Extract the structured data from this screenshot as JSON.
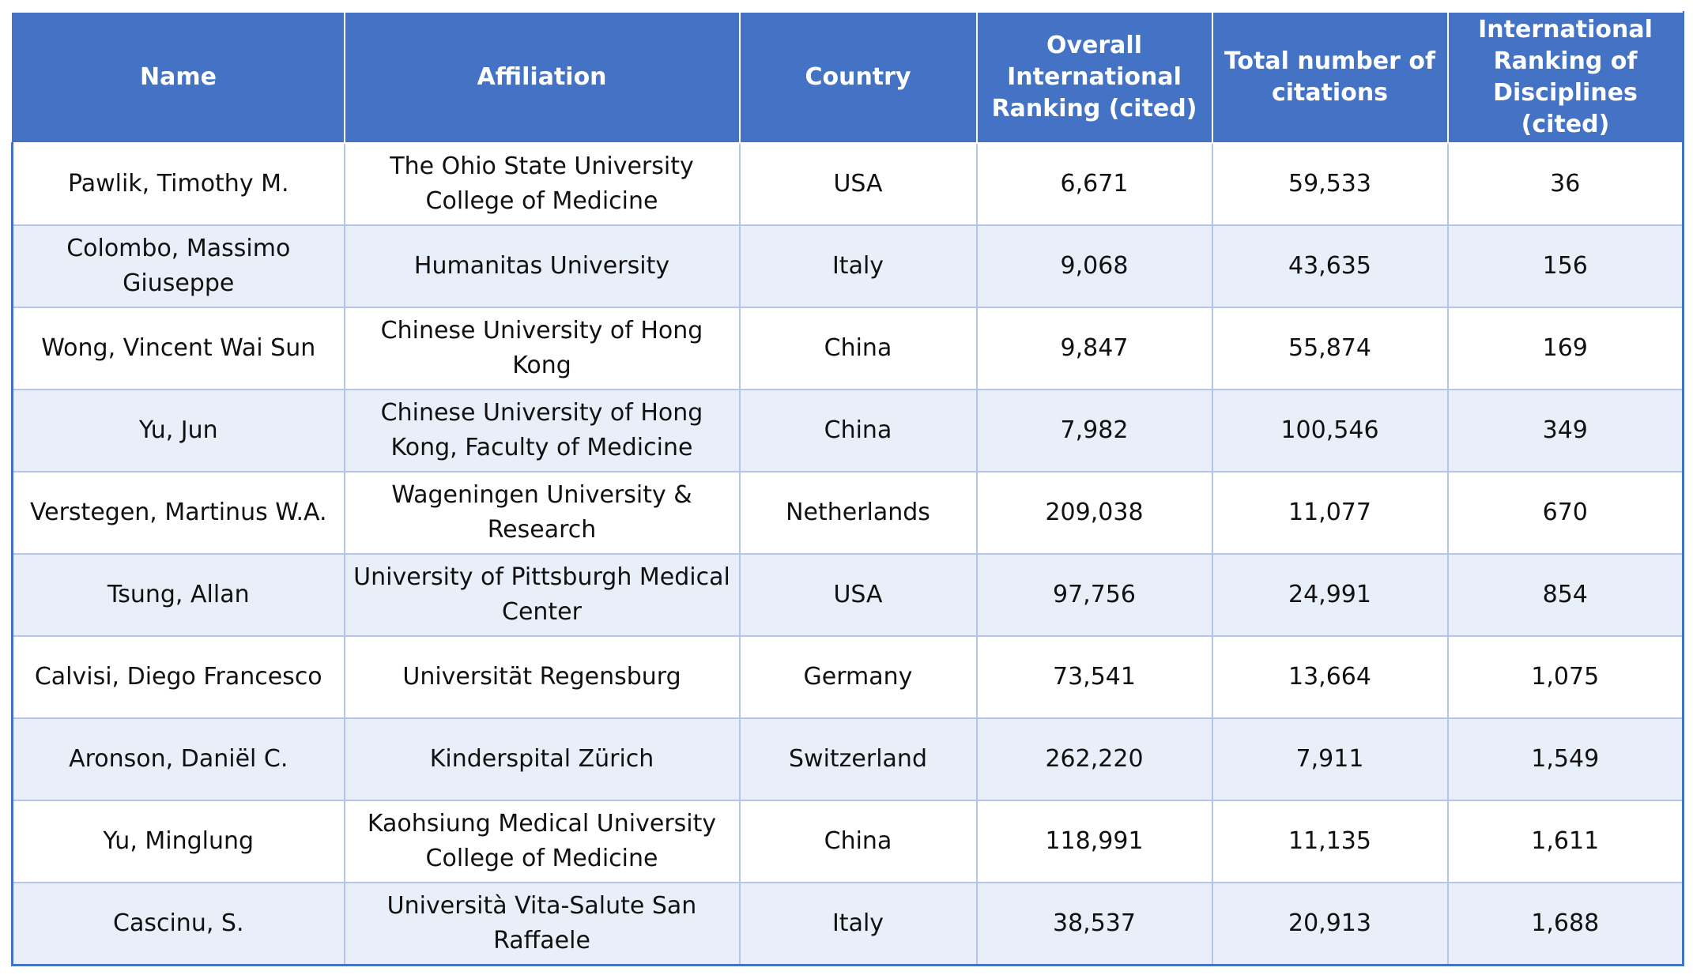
{
  "table": {
    "headers": [
      "Name",
      "Affiliation",
      "Country",
      "Overall International Ranking (cited)",
      "Total number of citations",
      "International Ranking of Disciplines (cited)"
    ],
    "rows": [
      [
        "Pawlik, Timothy M.",
        "The Ohio State University College of Medicine",
        "USA",
        "6,671",
        "59,533",
        "36"
      ],
      [
        "Colombo, Massimo Giuseppe",
        "Humanitas University",
        "Italy",
        "9,068",
        "43,635",
        "156"
      ],
      [
        "Wong, Vincent Wai Sun",
        "Chinese University of Hong Kong",
        "China",
        "9,847",
        "55,874",
        "169"
      ],
      [
        "Yu, Jun",
        "Chinese University of Hong Kong, Faculty of Medicine",
        "China",
        "7,982",
        "100,546",
        "349"
      ],
      [
        "Verstegen, Martinus W.A.",
        "Wageningen University & Research",
        "Netherlands",
        "209,038",
        "11,077",
        "670"
      ],
      [
        "Tsung, Allan",
        "University of Pittsburgh Medical Center",
        "USA",
        "97,756",
        "24,991",
        "854"
      ],
      [
        "Calvisi, Diego Francesco",
        "Universität Regensburg",
        "Germany",
        "73,541",
        "13,664",
        "1,075"
      ],
      [
        "Aronson, Daniël C.",
        "Kinderspital Zürich",
        "Switzerland",
        "262,220",
        "7,911",
        "1,549"
      ],
      [
        "Yu, Minglung",
        "Kaohsiung Medical University College of Medicine",
        "China",
        "118,991",
        "11,135",
        "1,611"
      ],
      [
        "Cascinu, S.",
        "Università Vita-Salute San Raffaele",
        "Italy",
        "38,537",
        "20,913",
        "1,688"
      ]
    ]
  },
  "colors": {
    "header_bg": "#4472c4",
    "header_text": "#ffffff",
    "band_bg": "#e9eff9",
    "grid_line": "#b4c6e7"
  }
}
